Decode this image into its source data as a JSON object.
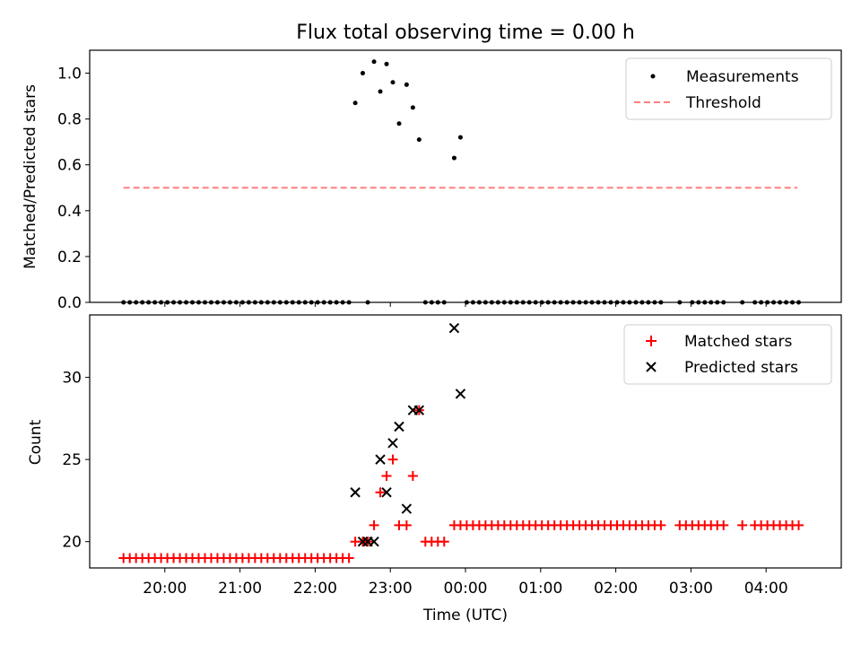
{
  "chart_data": [
    {
      "type": "scatter",
      "title": "Flux total observing time = 0.00 h",
      "xlabel": "",
      "ylabel": "Matched/Predicted stars",
      "ylim": [
        0,
        1.1
      ],
      "yticks": [
        "0.0",
        "0.2",
        "0.4",
        "0.6",
        "0.8",
        "1.0"
      ],
      "xlim_hours": [
        19.0,
        29.0
      ],
      "xticks": [
        "20:00",
        "21:00",
        "22:00",
        "23:00",
        "00:00",
        "01:00",
        "02:00",
        "03:00",
        "04:00"
      ],
      "legend_position": "top-right",
      "legend": [
        "Measurements",
        "Threshold"
      ],
      "threshold": {
        "value": 0.5,
        "x_start": "19:27",
        "x_end": "04:25",
        "color": "#ff7f7f",
        "style": "dashed"
      },
      "measurements_nonzero": [
        {
          "x": "22:32",
          "y": 0.87
        },
        {
          "x": "22:38",
          "y": 1.0
        },
        {
          "x": "22:47",
          "y": 1.05
        },
        {
          "x": "22:52",
          "y": 0.92
        },
        {
          "x": "22:57",
          "y": 1.04
        },
        {
          "x": "23:02",
          "y": 0.96
        },
        {
          "x": "23:07",
          "y": 0.78
        },
        {
          "x": "23:13",
          "y": 0.95
        },
        {
          "x": "23:18",
          "y": 0.85
        },
        {
          "x": "23:23",
          "y": 0.71
        },
        {
          "x": "23:51",
          "y": 0.63
        },
        {
          "x": "23:56",
          "y": 0.72
        }
      ],
      "measurements_zero_ranges": [
        {
          "from": "19:27",
          "to": "22:27",
          "step_min": 5
        },
        {
          "from": "22:42",
          "to": "22:42",
          "step_min": 5
        },
        {
          "from": "23:28",
          "to": "23:43",
          "step_min": 5
        },
        {
          "from": "00:01",
          "to": "02:36",
          "step_min": 5
        },
        {
          "from": "02:51",
          "to": "02:51",
          "step_min": 5
        },
        {
          "from": "03:01",
          "to": "03:26",
          "step_min": 5
        },
        {
          "from": "03:41",
          "to": "03:41",
          "step_min": 5
        },
        {
          "from": "03:51",
          "to": "04:26",
          "step_min": 5
        }
      ],
      "colors": {
        "measurements": "#000000",
        "threshold": "#ff7f7f"
      }
    },
    {
      "type": "scatter",
      "title": "",
      "xlabel": "Time (UTC)",
      "ylabel": "Count",
      "ylim": [
        18.4,
        33.8
      ],
      "yticks": [
        "20",
        "25",
        "30"
      ],
      "xlim_hours": [
        19.0,
        29.0
      ],
      "xticks": [
        "20:00",
        "21:00",
        "22:00",
        "23:00",
        "00:00",
        "01:00",
        "02:00",
        "03:00",
        "04:00"
      ],
      "legend_position": "top-right",
      "legend": [
        "Matched stars",
        "Predicted stars"
      ],
      "matched_ranges": [
        {
          "from": "19:27",
          "to": "22:27",
          "step_min": 5,
          "y": 19
        },
        {
          "from": "23:28",
          "to": "23:43",
          "step_min": 5,
          "y": 20
        },
        {
          "from": "23:51",
          "to": "02:36",
          "step_min": 5,
          "y": 21
        },
        {
          "from": "02:51",
          "to": "03:11",
          "step_min": 5,
          "y": 21
        },
        {
          "from": "03:16",
          "to": "03:26",
          "step_min": 5,
          "y": 21
        },
        {
          "from": "03:41",
          "to": "03:41",
          "step_min": 5,
          "y": 21
        },
        {
          "from": "03:51",
          "to": "04:26",
          "step_min": 5,
          "y": 21
        }
      ],
      "matched_points": [
        {
          "x": "22:32",
          "y": 20
        },
        {
          "x": "22:38",
          "y": 20
        },
        {
          "x": "22:42",
          "y": 20
        },
        {
          "x": "22:47",
          "y": 21
        },
        {
          "x": "22:52",
          "y": 23
        },
        {
          "x": "22:57",
          "y": 24
        },
        {
          "x": "23:02",
          "y": 25
        },
        {
          "x": "23:07",
          "y": 21
        },
        {
          "x": "23:13",
          "y": 21
        },
        {
          "x": "23:18",
          "y": 24
        },
        {
          "x": "23:23",
          "y": 28
        }
      ],
      "predicted_points": [
        {
          "x": "22:32",
          "y": 23
        },
        {
          "x": "22:38",
          "y": 20
        },
        {
          "x": "22:42",
          "y": 20
        },
        {
          "x": "22:47",
          "y": 20
        },
        {
          "x": "22:52",
          "y": 25
        },
        {
          "x": "22:57",
          "y": 23
        },
        {
          "x": "23:02",
          "y": 26
        },
        {
          "x": "23:07",
          "y": 27
        },
        {
          "x": "23:13",
          "y": 22
        },
        {
          "x": "23:18",
          "y": 28
        },
        {
          "x": "23:23",
          "y": 28
        },
        {
          "x": "23:51",
          "y": 33
        },
        {
          "x": "23:56",
          "y": 29
        }
      ],
      "colors": {
        "matched": "#ff0000",
        "predicted": "#000000"
      }
    }
  ]
}
